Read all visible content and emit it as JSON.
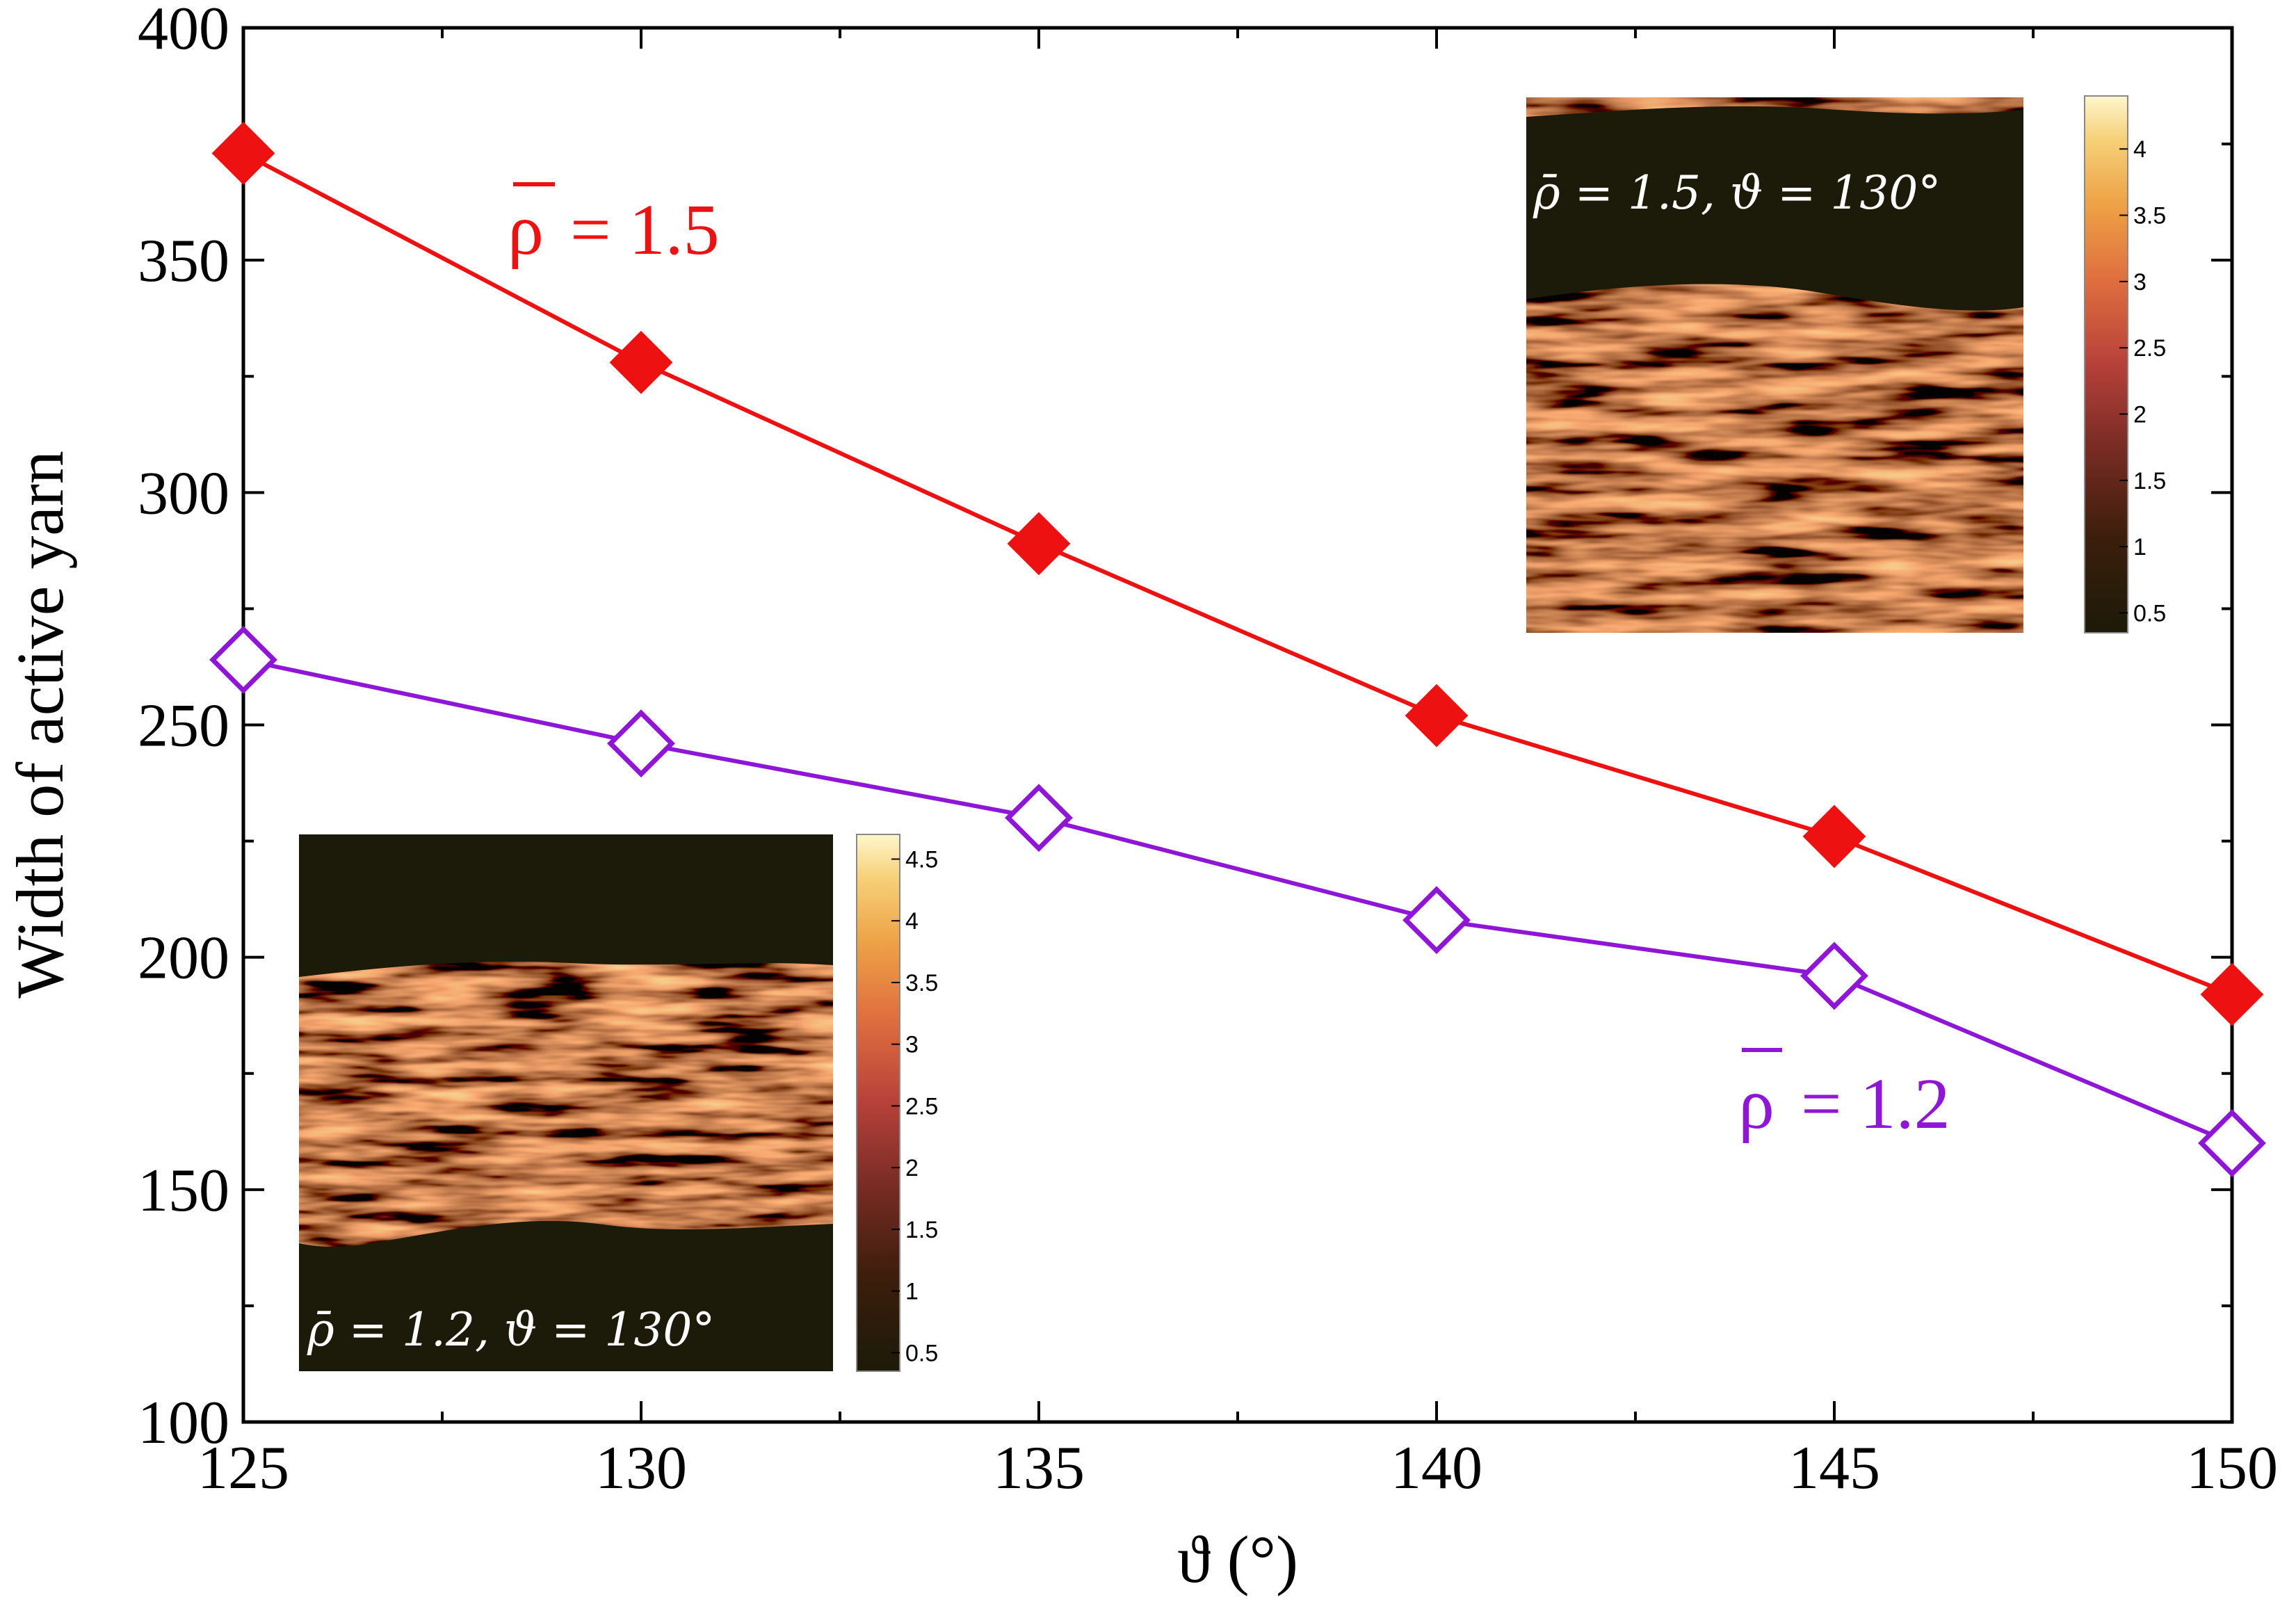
{
  "chart_data": {
    "type": "line",
    "xlabel": "ϑ (°)",
    "ylabel": "Width of active yarn",
    "xlim": [
      125,
      150
    ],
    "ylim": [
      100,
      400
    ],
    "x_ticks": [
      125,
      130,
      135,
      140,
      145,
      150
    ],
    "y_ticks": [
      100,
      150,
      200,
      250,
      300,
      350,
      400
    ],
    "x": [
      125,
      130,
      135,
      140,
      145,
      150
    ],
    "series": [
      {
        "name": "ρ = 1.5",
        "label_symbol": "ρ",
        "label_value": "= 1.5",
        "color": "#ee1111",
        "marker": "diamond-filled",
        "values": [
          373,
          328,
          289,
          252,
          226,
          192
        ]
      },
      {
        "name": "ρ = 1.2",
        "label_symbol": "ρ",
        "label_value": "= 1.2",
        "color": "#8f16d6",
        "marker": "diamond-open",
        "values": [
          264,
          246,
          230,
          208,
          196,
          160
        ]
      }
    ],
    "insets": [
      {
        "label": "ρ̄ = 1.5, ϑ = 130°",
        "colorbar_ticks": [
          "0.5",
          "1",
          "1.5",
          "2",
          "2.5",
          "3",
          "3.5",
          "4"
        ],
        "colorbar_max": 4.4,
        "placement": "top-right"
      },
      {
        "label": "ρ̄ = 1.2, ϑ = 130°",
        "colorbar_ticks": [
          "0.5",
          "1",
          "1.5",
          "2",
          "2.5",
          "3",
          "3.5",
          "4",
          "4.5"
        ],
        "colorbar_max": 4.7,
        "placement": "bottom-left"
      }
    ]
  }
}
